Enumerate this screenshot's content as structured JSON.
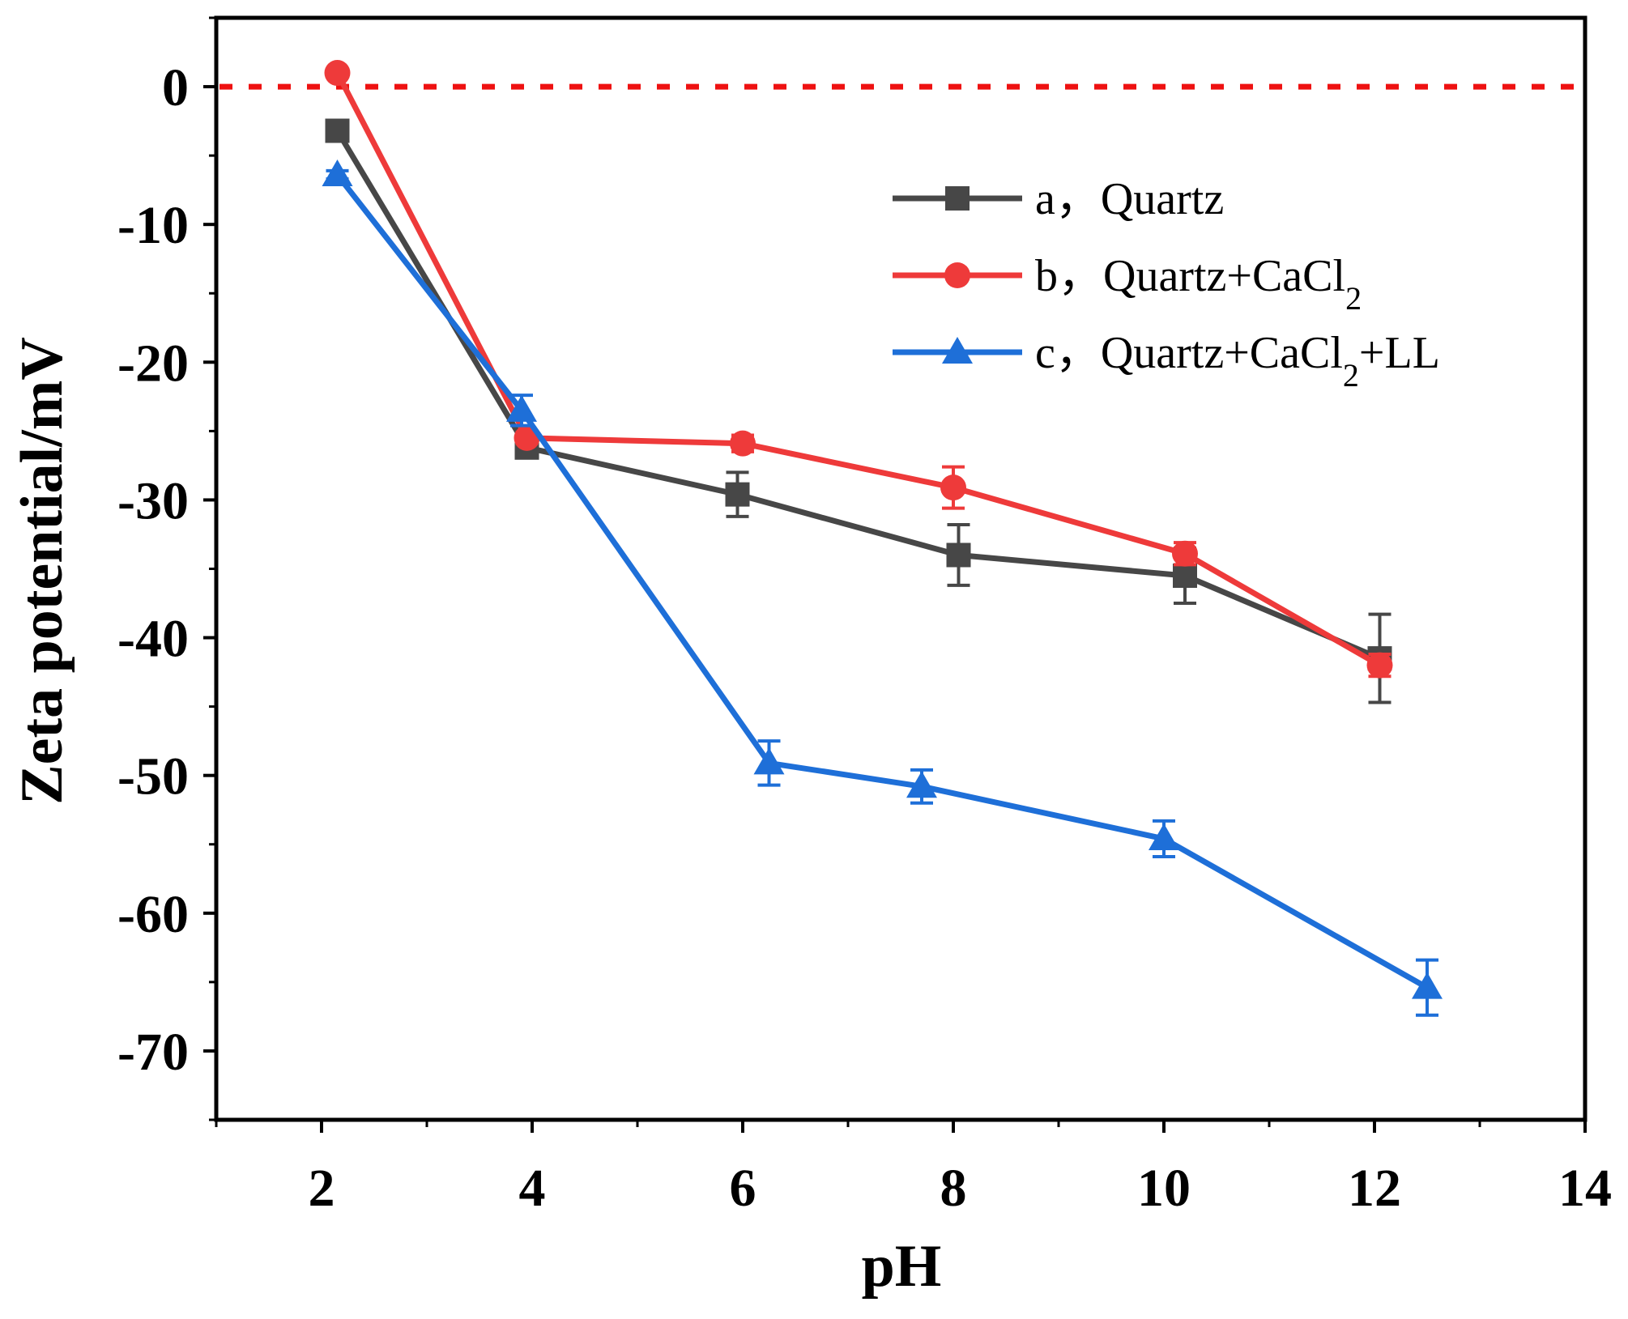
{
  "chart_data": {
    "type": "line",
    "title": "",
    "xlabel": "pH",
    "ylabel": "Zeta potential/mV",
    "xlim": [
      1,
      14
    ],
    "ylim": [
      -75,
      5
    ],
    "xticks": [
      2,
      4,
      6,
      8,
      10,
      12,
      14
    ],
    "yticks": [
      0,
      -10,
      -20,
      -30,
      -40,
      -50,
      -60,
      -70
    ],
    "xtick_labels": [
      "2",
      "4",
      "6",
      "8",
      "10",
      "12",
      "14"
    ],
    "ytick_labels": [
      "0",
      "-10",
      "-20",
      "-30",
      "-40",
      "-50",
      "-60",
      "-70"
    ],
    "grid": false,
    "legend_position": "upper-right",
    "reference_line": {
      "y": 0,
      "style": "dotted",
      "color": "#ee1111"
    },
    "series": [
      {
        "name": "a，Quartz",
        "legend_prefix": "a，",
        "legend_main": "Quartz",
        "legend_rest": [],
        "marker": "square",
        "color": "#474747",
        "x": [
          2.15,
          3.95,
          5.95,
          8.05,
          10.2,
          12.05
        ],
        "y": [
          -3.2,
          -26.2,
          -29.6,
          -34.0,
          -35.5,
          -41.5
        ],
        "err": [
          0.4,
          0.6,
          1.6,
          2.2,
          2.0,
          3.2
        ]
      },
      {
        "name": "b，Quartz+CaCl2",
        "legend_prefix": "b，",
        "legend_main": "Quartz+CaCl",
        "legend_rest": [
          {
            "text": "2",
            "sub": true
          }
        ],
        "marker": "circle",
        "color": "#ee3a3a",
        "x": [
          2.15,
          3.95,
          6.0,
          8.0,
          10.2,
          12.05
        ],
        "y": [
          1.0,
          -25.5,
          -25.9,
          -29.1,
          -33.9,
          -42.0
        ],
        "err": [
          0.2,
          0.4,
          0.6,
          1.5,
          0.8,
          0.8
        ]
      },
      {
        "name": "c，Quartz+CaCl2+LL",
        "legend_prefix": "c，",
        "legend_main": "Quartz+CaCl",
        "legend_rest": [
          {
            "text": "2",
            "sub": true
          },
          {
            "text": "+LL",
            "sub": false
          }
        ],
        "marker": "triangle",
        "color": "#1e6fd8",
        "x": [
          2.15,
          3.9,
          6.25,
          7.7,
          10.0,
          12.5
        ],
        "y": [
          -6.4,
          -23.5,
          -49.1,
          -50.8,
          -54.6,
          -65.4
        ],
        "err": [
          0.3,
          1.1,
          1.6,
          1.2,
          1.3,
          2.0
        ]
      }
    ]
  }
}
